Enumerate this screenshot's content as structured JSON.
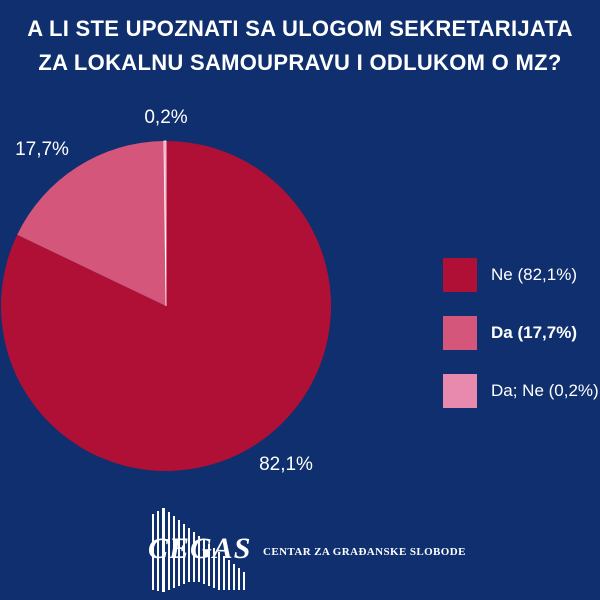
{
  "chart_data": {
    "type": "pie",
    "title_lines": [
      "A LI STE UPOZNATI SA ULOGOM SEKRETARIJATA",
      "ZA LOKALNU SAMOUPRAVU I ODLUKOM O MZ?"
    ],
    "slices": [
      {
        "label": "Ne (82,1%)",
        "value": 82.1,
        "data_label": "82,1%",
        "color": "#b11036"
      },
      {
        "label": "Da (17,7%)",
        "value": 17.7,
        "data_label": "17,7%",
        "color": "#d4567a"
      },
      {
        "label": "Da; Ne (0,2%)",
        "value": 0.2,
        "data_label": "0,2%",
        "color": "#e78aae"
      }
    ],
    "legend_position": "right"
  },
  "footer": {
    "logo_text": "CEGAS",
    "org_name": "CENTAR ZA GRAĐANSKE SLOBODE"
  }
}
